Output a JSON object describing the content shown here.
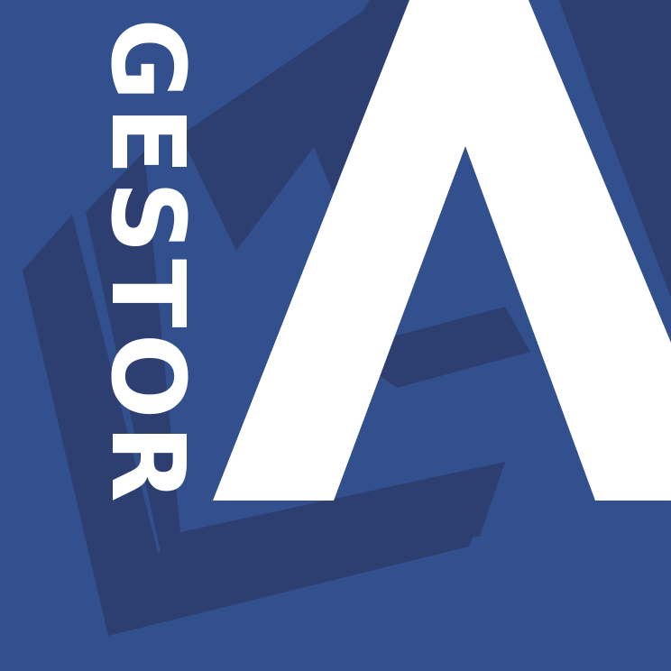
{
  "logo": {
    "brand_word": "GESTOR",
    "letter_mark": "A",
    "description_icon": "chevron-stack-icon"
  },
  "colors": {
    "background": "#33508E",
    "chevron_dark": "#2D3F70",
    "foreground": "#FFFFFF"
  }
}
